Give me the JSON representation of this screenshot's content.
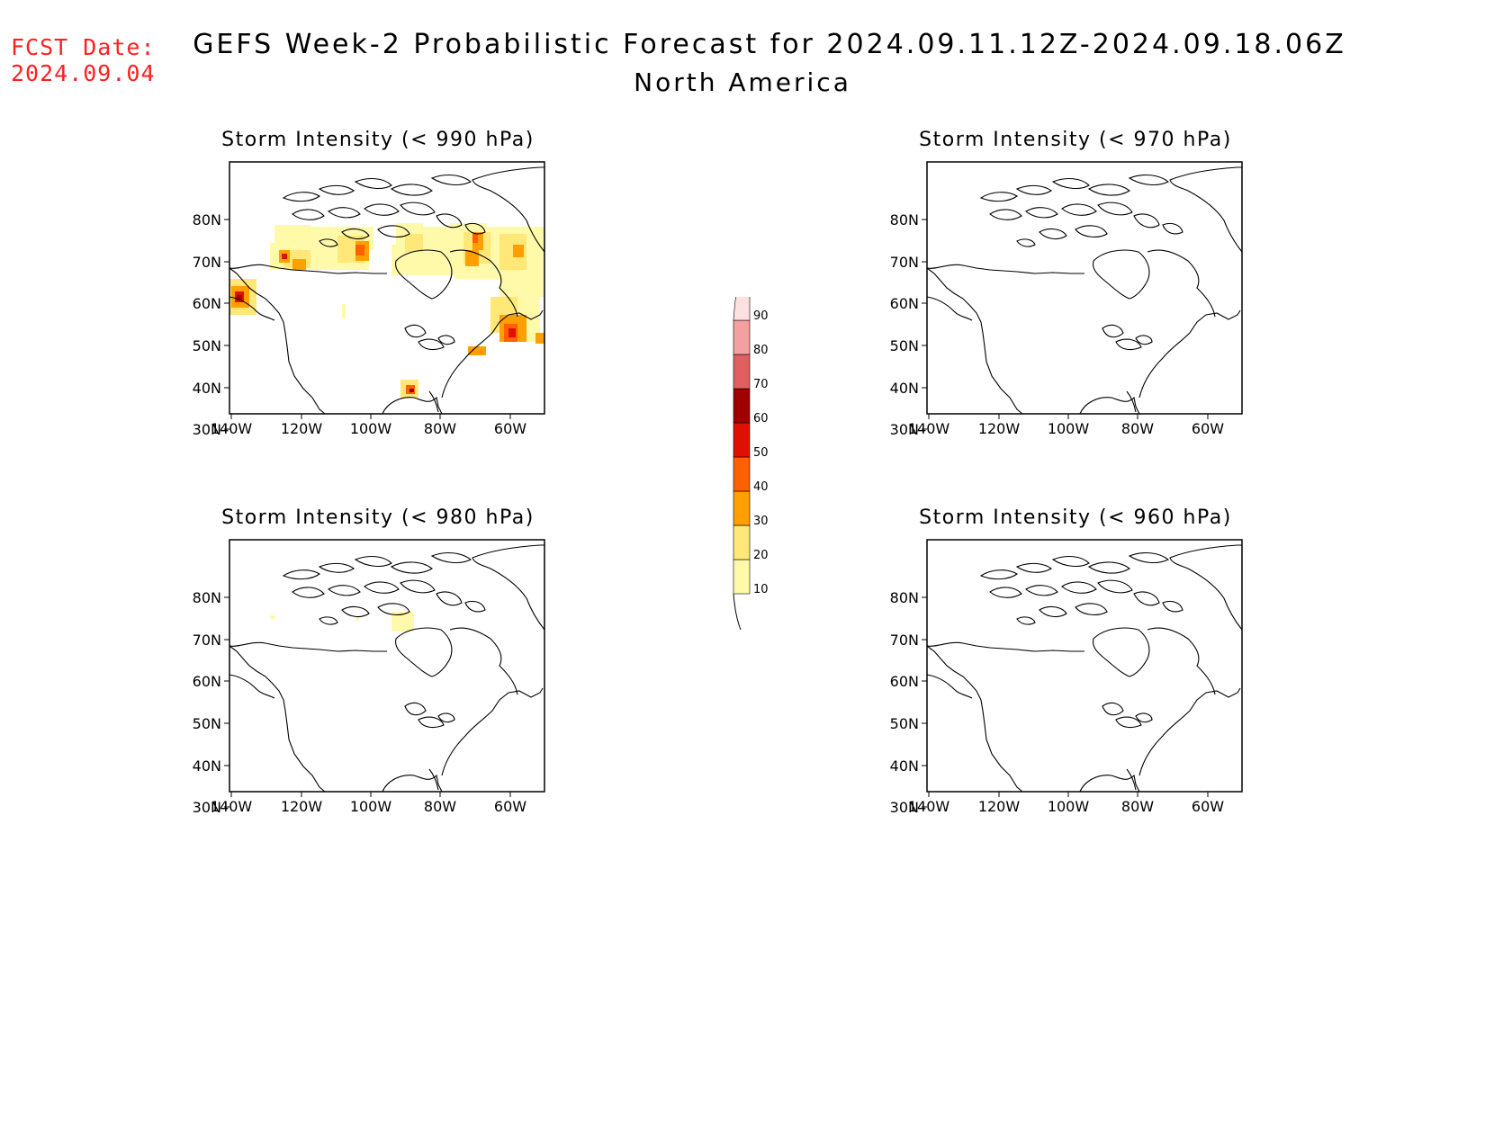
{
  "header": {
    "fcst_label": "FCST Date:",
    "fcst_date": "2024.09.04",
    "title": "GEFS Week-2 Probabilistic Forecast for 2024.09.11.12Z-2024.09.18.06Z",
    "subtitle": "North America"
  },
  "axes": {
    "lat_ticks": [
      "80N",
      "70N",
      "60N",
      "50N",
      "40N",
      "30N"
    ],
    "lon_ticks": [
      "140W",
      "120W",
      "100W",
      "80W",
      "60W"
    ]
  },
  "panels": [
    {
      "id": "p990",
      "title": "Storm Intensity (< 990 hPa)",
      "has_data": true
    },
    {
      "id": "p970",
      "title": "Storm Intensity (< 970 hPa)",
      "has_data": false
    },
    {
      "id": "p980",
      "title": "Storm Intensity (< 980 hPa)",
      "has_data": true
    },
    {
      "id": "p960",
      "title": "Storm Intensity (< 960 hPa)",
      "has_data": false
    }
  ],
  "colorbar": {
    "labels": [
      "10",
      "20",
      "30",
      "40",
      "50",
      "60",
      "70",
      "80",
      "90"
    ],
    "colors": [
      "#fffaaa",
      "#ffe878",
      "#ffa000",
      "#ff6000",
      "#e01000",
      "#a00000",
      "#e06060",
      "#f4a0a0",
      "#fde0e0"
    ]
  }
}
